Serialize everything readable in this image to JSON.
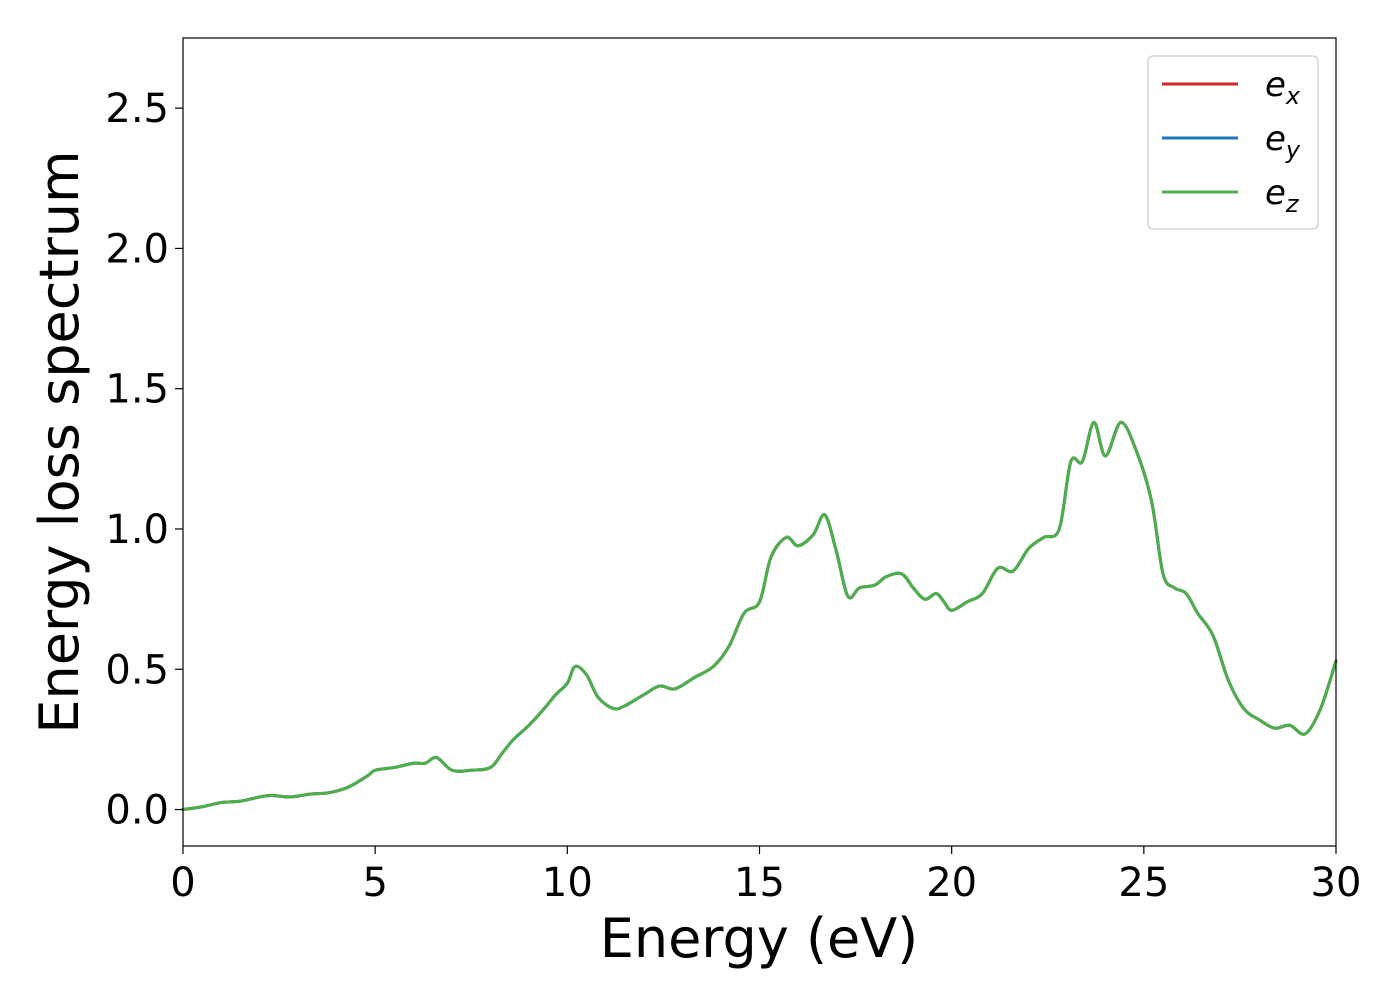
{
  "chart_data": {
    "type": "line",
    "xlabel": "Energy (eV)",
    "ylabel": "Energy loss spectrum",
    "xlim": [
      0,
      30
    ],
    "ylim": [
      -0.13,
      2.75
    ],
    "grid": false,
    "legend_position": "top-right",
    "x_ticks": [
      "0",
      "5",
      "10",
      "15",
      "20",
      "25",
      "30"
    ],
    "y_ticks": [
      "0.0",
      "0.5",
      "1.0",
      "1.5",
      "2.0",
      "2.5"
    ],
    "x_tick_values": [
      0,
      5,
      10,
      15,
      20,
      25,
      30
    ],
    "y_tick_values": [
      0.0,
      0.5,
      1.0,
      1.5,
      2.0,
      2.5
    ],
    "legend": [
      {
        "base": "e",
        "sub": "x",
        "color": "#d62728"
      },
      {
        "base": "e",
        "sub": "y",
        "color": "#1f77b4"
      },
      {
        "base": "e",
        "sub": "z",
        "color": "#4daf4a"
      }
    ],
    "x": [
      0,
      0.5,
      1.0,
      1.5,
      2.0,
      2.3,
      2.8,
      3.3,
      3.8,
      4.3,
      4.8,
      5.0,
      5.5,
      6.0,
      6.3,
      6.6,
      7.0,
      7.5,
      8.0,
      8.3,
      8.6,
      9.0,
      9.4,
      9.7,
      10.0,
      10.2,
      10.5,
      10.8,
      11.2,
      11.5,
      12.0,
      12.4,
      12.8,
      13.3,
      13.8,
      14.2,
      14.6,
      15.0,
      15.3,
      15.7,
      16.0,
      16.4,
      16.7,
      17.0,
      17.3,
      17.6,
      18.0,
      18.3,
      18.7,
      19.0,
      19.3,
      19.6,
      19.8,
      20.0,
      20.4,
      20.8,
      21.2,
      21.6,
      22.0,
      22.4,
      22.8,
      23.1,
      23.4,
      23.7,
      24.0,
      24.4,
      24.8,
      25.2,
      25.5,
      25.8,
      26.1,
      26.4,
      26.8,
      27.2,
      27.6,
      28.0,
      28.4,
      28.8,
      29.2,
      29.6,
      30.0
    ],
    "series": [
      {
        "name": "e_x",
        "color": "#d62728",
        "values": [
          0.0,
          0.01,
          0.025,
          0.03,
          0.045,
          0.05,
          0.045,
          0.055,
          0.06,
          0.08,
          0.12,
          0.14,
          0.15,
          0.165,
          0.165,
          0.185,
          0.14,
          0.14,
          0.15,
          0.2,
          0.25,
          0.3,
          0.36,
          0.41,
          0.45,
          0.51,
          0.48,
          0.4,
          0.36,
          0.37,
          0.41,
          0.44,
          0.43,
          0.47,
          0.51,
          0.58,
          0.7,
          0.74,
          0.9,
          0.97,
          0.94,
          0.98,
          1.05,
          0.92,
          0.76,
          0.79,
          0.8,
          0.83,
          0.84,
          0.79,
          0.75,
          0.77,
          0.74,
          0.71,
          0.74,
          0.77,
          0.86,
          0.85,
          0.93,
          0.97,
          1.0,
          1.24,
          1.24,
          1.38,
          1.26,
          1.38,
          1.28,
          1.1,
          0.84,
          0.79,
          0.77,
          0.7,
          0.62,
          0.46,
          0.36,
          0.32,
          0.29,
          0.3,
          0.27,
          0.36,
          0.53
        ]
      },
      {
        "name": "e_y",
        "color": "#1f77b4",
        "values": [
          0.0,
          0.01,
          0.025,
          0.03,
          0.045,
          0.05,
          0.045,
          0.055,
          0.06,
          0.08,
          0.12,
          0.14,
          0.15,
          0.165,
          0.165,
          0.185,
          0.14,
          0.14,
          0.15,
          0.2,
          0.25,
          0.3,
          0.36,
          0.41,
          0.45,
          0.51,
          0.48,
          0.4,
          0.36,
          0.37,
          0.41,
          0.44,
          0.43,
          0.47,
          0.51,
          0.58,
          0.7,
          0.74,
          0.9,
          0.97,
          0.94,
          0.98,
          1.05,
          0.92,
          0.76,
          0.79,
          0.8,
          0.83,
          0.84,
          0.79,
          0.75,
          0.77,
          0.74,
          0.71,
          0.74,
          0.77,
          0.86,
          0.85,
          0.93,
          0.97,
          1.0,
          1.24,
          1.24,
          1.38,
          1.26,
          1.38,
          1.28,
          1.1,
          0.84,
          0.79,
          0.77,
          0.7,
          0.62,
          0.46,
          0.36,
          0.32,
          0.29,
          0.3,
          0.27,
          0.36,
          0.53
        ]
      },
      {
        "name": "e_z",
        "color": "#4daf4a",
        "values": [
          0.0,
          0.01,
          0.025,
          0.03,
          0.045,
          0.05,
          0.045,
          0.055,
          0.06,
          0.08,
          0.12,
          0.14,
          0.15,
          0.165,
          0.165,
          0.185,
          0.14,
          0.14,
          0.15,
          0.2,
          0.25,
          0.3,
          0.36,
          0.41,
          0.45,
          0.51,
          0.48,
          0.4,
          0.36,
          0.37,
          0.41,
          0.44,
          0.43,
          0.47,
          0.51,
          0.58,
          0.7,
          0.74,
          0.9,
          0.97,
          0.94,
          0.98,
          1.05,
          0.92,
          0.76,
          0.79,
          0.8,
          0.83,
          0.84,
          0.79,
          0.75,
          0.77,
          0.74,
          0.71,
          0.74,
          0.77,
          0.86,
          0.85,
          0.93,
          0.97,
          1.0,
          1.24,
          1.24,
          1.38,
          1.26,
          1.38,
          1.28,
          1.1,
          0.84,
          0.79,
          0.77,
          0.7,
          0.62,
          0.46,
          0.36,
          0.32,
          0.29,
          0.3,
          0.27,
          0.36,
          0.53
        ]
      }
    ]
  }
}
